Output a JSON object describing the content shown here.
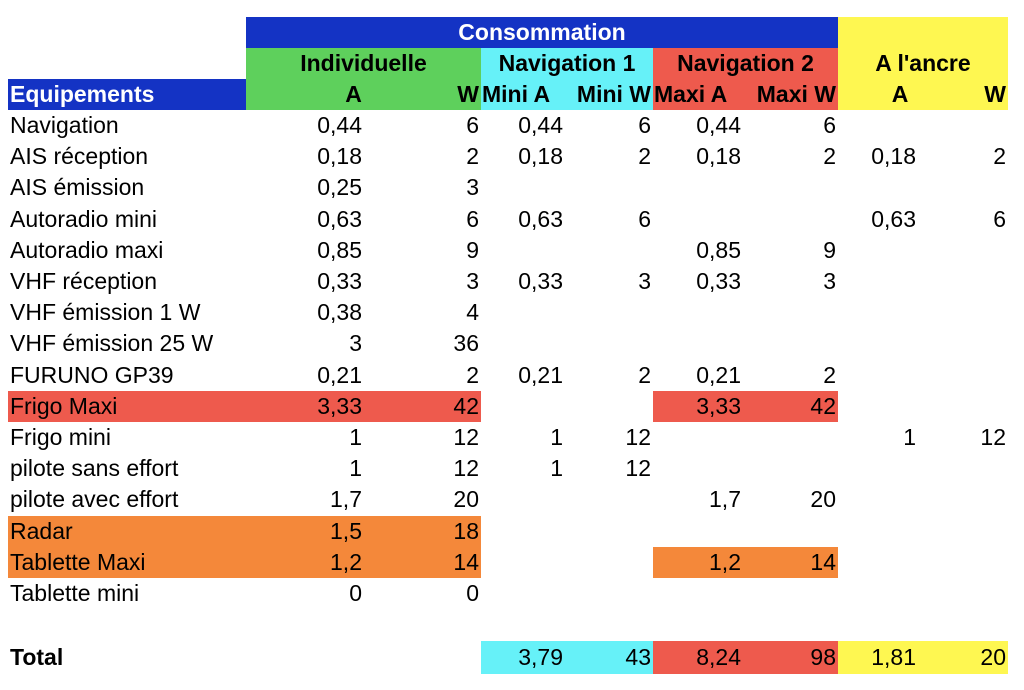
{
  "header": {
    "consommation": "Consommation",
    "equipements": "Equipements",
    "individuelle": "Individuelle",
    "navigation1": "Navigation 1",
    "navigation2": "Navigation 2",
    "ancre": "A l'ancre",
    "ind_a": "A",
    "ind_w": "W",
    "nav1_a": "Mini A",
    "nav1_w": "Mini W",
    "nav2_a": "Maxi A",
    "nav2_w": "Maxi W",
    "anc_a": "A",
    "anc_w": "W"
  },
  "colors": {
    "blue": "#1433c4",
    "green": "#5ed05c",
    "cyan": "#66f1f8",
    "red": "#ee5a4d",
    "yellow": "#fef751",
    "orange": "#f4883a"
  },
  "rows": [
    {
      "name": "Navigation",
      "ind_a": "0,44",
      "ind_w": "6",
      "nav1_a": "0,44",
      "nav1_w": "6",
      "nav2_a": "0,44",
      "nav2_w": "6",
      "anc_a": "",
      "anc_w": ""
    },
    {
      "name": "AIS réception",
      "ind_a": "0,18",
      "ind_w": "2",
      "nav1_a": "0,18",
      "nav1_w": "2",
      "nav2_a": "0,18",
      "nav2_w": "2",
      "anc_a": "0,18",
      "anc_w": "2"
    },
    {
      "name": "AIS émission",
      "ind_a": "0,25",
      "ind_w": "3",
      "nav1_a": "",
      "nav1_w": "",
      "nav2_a": "",
      "nav2_w": "",
      "anc_a": "",
      "anc_w": ""
    },
    {
      "name": "Autoradio mini",
      "ind_a": "0,63",
      "ind_w": "6",
      "nav1_a": "0,63",
      "nav1_w": "6",
      "nav2_a": "",
      "nav2_w": "",
      "anc_a": "0,63",
      "anc_w": "6"
    },
    {
      "name": "Autoradio maxi",
      "ind_a": "0,85",
      "ind_w": "9",
      "nav1_a": "",
      "nav1_w": "",
      "nav2_a": "0,85",
      "nav2_w": "9",
      "anc_a": "",
      "anc_w": ""
    },
    {
      "name": "VHF réception",
      "ind_a": "0,33",
      "ind_w": "3",
      "nav1_a": "0,33",
      "nav1_w": "3",
      "nav2_a": "0,33",
      "nav2_w": "3",
      "anc_a": "",
      "anc_w": ""
    },
    {
      "name": "VHF émission 1 W",
      "ind_a": "0,38",
      "ind_w": "4",
      "nav1_a": "",
      "nav1_w": "",
      "nav2_a": "",
      "nav2_w": "",
      "anc_a": "",
      "anc_w": ""
    },
    {
      "name": "VHF émission 25 W",
      "ind_a": "3",
      "ind_w": "36",
      "nav1_a": "",
      "nav1_w": "",
      "nav2_a": "",
      "nav2_w": "",
      "anc_a": "",
      "anc_w": ""
    },
    {
      "name": "FURUNO GP39",
      "ind_a": "0,21",
      "ind_w": "2",
      "nav1_a": "0,21",
      "nav1_w": "2",
      "nav2_a": "0,21",
      "nav2_w": "2",
      "anc_a": "",
      "anc_w": ""
    },
    {
      "name": "Frigo Maxi",
      "ind_a": "3,33",
      "ind_w": "42",
      "nav1_a": "",
      "nav1_w": "",
      "nav2_a": "3,33",
      "nav2_w": "42",
      "anc_a": "",
      "anc_w": "",
      "highlight": "red"
    },
    {
      "name": "Frigo  mini",
      "ind_a": "1",
      "ind_w": "12",
      "nav1_a": "1",
      "nav1_w": "12",
      "nav2_a": "",
      "nav2_w": "",
      "anc_a": "1",
      "anc_w": "12"
    },
    {
      "name": "pilote sans effort",
      "ind_a": "1",
      "ind_w": "12",
      "nav1_a": "1",
      "nav1_w": "12",
      "nav2_a": "",
      "nav2_w": "",
      "anc_a": "",
      "anc_w": ""
    },
    {
      "name": "pilote avec effort",
      "ind_a": "1,7",
      "ind_w": "20",
      "nav1_a": "",
      "nav1_w": "",
      "nav2_a": "1,7",
      "nav2_w": "20",
      "anc_a": "",
      "anc_w": ""
    },
    {
      "name": "Radar",
      "ind_a": "1,5",
      "ind_w": "18",
      "nav1_a": "",
      "nav1_w": "",
      "nav2_a": "",
      "nav2_w": "",
      "anc_a": "",
      "anc_w": "",
      "highlight": "orange"
    },
    {
      "name": "Tablette Maxi",
      "ind_a": "1,2",
      "ind_w": "14",
      "nav1_a": "",
      "nav1_w": "",
      "nav2_a": "1,2",
      "nav2_w": "14",
      "anc_a": "",
      "anc_w": "",
      "highlight": "orange"
    },
    {
      "name": "Tablette mini",
      "ind_a": "0",
      "ind_w": "0",
      "nav1_a": "",
      "nav1_w": "",
      "nav2_a": "",
      "nav2_w": "",
      "anc_a": "",
      "anc_w": ""
    }
  ],
  "total": {
    "label": "Total",
    "nav1_a": "3,79",
    "nav1_w": "43",
    "nav2_a": "8,24",
    "nav2_w": "98",
    "anc_a": "1,81",
    "anc_w": "20"
  }
}
